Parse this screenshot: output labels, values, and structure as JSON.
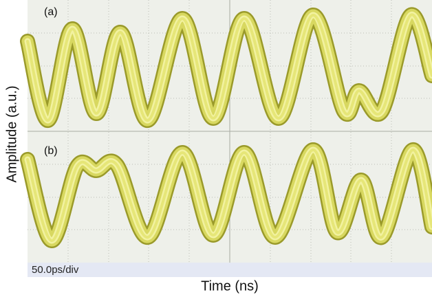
{
  "labels": {
    "trace_a": "(a)",
    "trace_b": "(b)",
    "y_axis": "Amplitude (a.u.)",
    "x_axis": "Time (ns)",
    "timebase": "50.0ps/div"
  }
}
